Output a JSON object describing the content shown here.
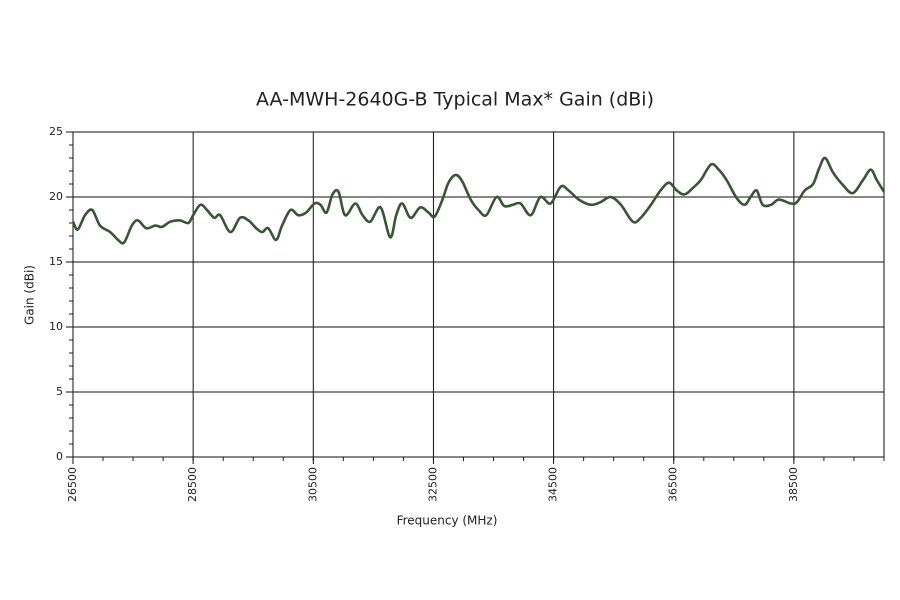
{
  "chart_data": {
    "type": "line",
    "title": "AA-MWH-2640G-B Typical Max* Gain (dBi)",
    "x_label": "Frequency (MHz)",
    "y_label": "Gain (dBi)",
    "xlim": [
      26500,
      40000
    ],
    "xticks": [
      26500,
      28500,
      30500,
      32500,
      34500,
      36500,
      38500
    ],
    "ylim": [
      0,
      25
    ],
    "yticks": [
      0,
      5,
      10,
      15,
      20,
      25
    ],
    "x_minor_step": 500,
    "y_minor_step": 1,
    "grid": true,
    "series": [
      {
        "name": "Gain",
        "color": "#3b5438",
        "x": [
          26500,
          26580,
          26700,
          26820,
          26950,
          27120,
          27250,
          27350,
          27480,
          27580,
          27720,
          27870,
          27980,
          28120,
          28280,
          28420,
          28500,
          28620,
          28730,
          28850,
          28950,
          29120,
          29280,
          29420,
          29550,
          29650,
          29750,
          29880,
          29980,
          30120,
          30250,
          30380,
          30520,
          30620,
          30720,
          30820,
          30920,
          31030,
          31200,
          31320,
          31450,
          31620,
          31780,
          31880,
          31980,
          32120,
          32280,
          32420,
          32520,
          32650,
          32750,
          32870,
          32980,
          33120,
          33250,
          33380,
          33550,
          33680,
          33820,
          33950,
          34120,
          34280,
          34450,
          34620,
          34750,
          34920,
          35120,
          35280,
          35450,
          35620,
          35820,
          35950,
          36120,
          36280,
          36420,
          36550,
          36680,
          36820,
          36950,
          37120,
          37250,
          37380,
          37550,
          37680,
          37780,
          37880,
          37980,
          38120,
          38250,
          38450,
          38550,
          38680,
          38820,
          38920,
          39020,
          39150,
          39320,
          39480,
          39650,
          39780,
          39880,
          40000
        ],
        "values": [
          18.1,
          17.5,
          18.6,
          19.0,
          17.8,
          17.3,
          16.7,
          16.5,
          17.8,
          18.2,
          17.6,
          17.8,
          17.7,
          18.1,
          18.2,
          18.0,
          18.6,
          19.4,
          19.0,
          18.4,
          18.6,
          17.3,
          18.4,
          18.2,
          17.6,
          17.3,
          17.6,
          16.7,
          17.8,
          19.0,
          18.6,
          18.8,
          19.5,
          19.4,
          18.8,
          20.2,
          20.4,
          18.6,
          19.5,
          18.6,
          18.1,
          19.2,
          16.9,
          18.6,
          19.5,
          18.4,
          19.2,
          18.8,
          18.5,
          19.8,
          21.1,
          21.7,
          21.2,
          19.8,
          19.0,
          18.6,
          20.0,
          19.3,
          19.4,
          19.5,
          18.6,
          20.0,
          19.5,
          20.8,
          20.5,
          19.8,
          19.4,
          19.6,
          20.0,
          19.4,
          18.1,
          18.4,
          19.4,
          20.5,
          21.1,
          20.5,
          20.2,
          20.7,
          21.3,
          22.5,
          22.1,
          21.3,
          19.9,
          19.4,
          20.0,
          20.5,
          19.4,
          19.4,
          19.8,
          19.5,
          19.6,
          20.5,
          21.0,
          22.2,
          23.0,
          21.9,
          20.9,
          20.3,
          21.3,
          22.1,
          21.3,
          20.4
        ]
      }
    ]
  }
}
